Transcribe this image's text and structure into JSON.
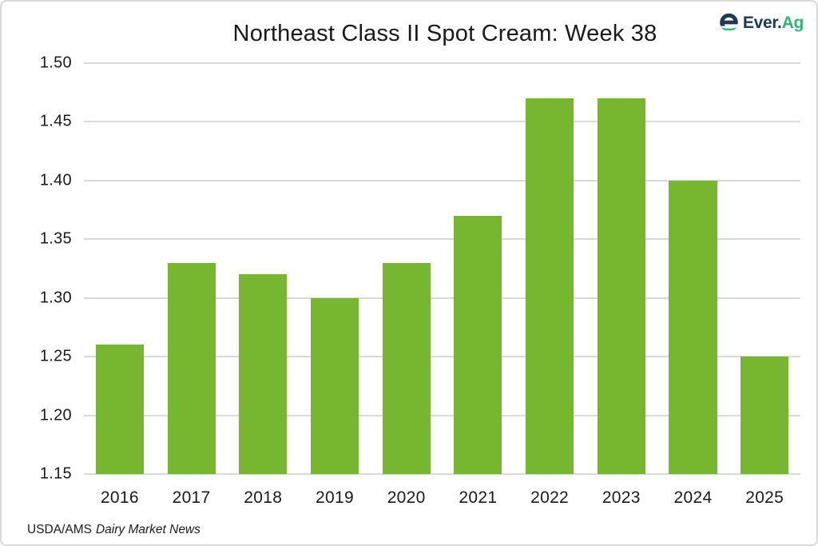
{
  "page": {
    "background": "#ffffff",
    "border_color": "#d9d9d9"
  },
  "header": {
    "title": "Northeast Class II Spot Cream: Week 38"
  },
  "logo": {
    "text_primary": "Ever.",
    "text_accent": "Ag",
    "navy": "#1d3a50",
    "green": "#2eb673"
  },
  "colors": {
    "bar": "#76b72f",
    "gridline": "#d9d9d9",
    "text": "#1a1a1a"
  },
  "footer": {
    "source_prefix": "USDA/AMS",
    "source_title": "Dairy Market News"
  },
  "chart_data": {
    "type": "bar",
    "title": "Northeast Class II Spot Cream: Week 38",
    "categories": [
      "2016",
      "2017",
      "2018",
      "2019",
      "2020",
      "2021",
      "2022",
      "2023",
      "2024",
      "2025"
    ],
    "values": [
      1.26,
      1.33,
      1.32,
      1.3,
      1.33,
      1.37,
      1.47,
      1.47,
      1.4,
      1.25
    ],
    "xlabel": "",
    "ylabel": "",
    "ylim": [
      1.15,
      1.5
    ],
    "ytick_step": 0.05,
    "ytick_decimals": 2,
    "grid": "horizontal",
    "legend": "none",
    "bar_color": "#76b72f",
    "source": "USDA/AMS Dairy Market News"
  }
}
